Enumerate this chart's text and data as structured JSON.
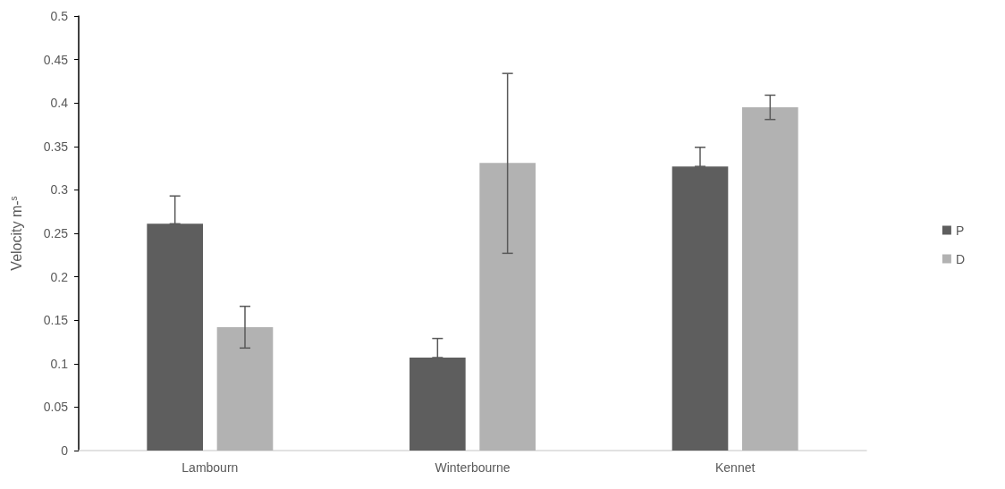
{
  "chart_data": {
    "type": "bar",
    "ylabel": "Velocity m-$^{s}$",
    "categories": [
      "Lambourn",
      "Winterbourne",
      "Kennet"
    ],
    "series": [
      {
        "name": "P",
        "color": "#5e5e5e",
        "values": [
          0.261,
          0.107,
          0.327
        ],
        "errors": [
          [
            0.261,
            0.293
          ],
          [
            0.107,
            0.129
          ],
          [
            0.327,
            0.349
          ]
        ]
      },
      {
        "name": "D",
        "color": "#b2b2b2",
        "values": [
          0.142,
          0.331,
          0.395
        ],
        "errors": [
          [
            0.118,
            0.166
          ],
          [
            0.227,
            0.434
          ],
          [
            0.381,
            0.409
          ]
        ]
      }
    ],
    "ylim": [
      0,
      0.5
    ],
    "yticks": [
      0,
      0.05,
      0.1,
      0.15,
      0.2,
      0.25,
      0.3,
      0.35,
      0.4,
      0.45,
      0.5
    ],
    "grid": false,
    "legend": "right"
  }
}
